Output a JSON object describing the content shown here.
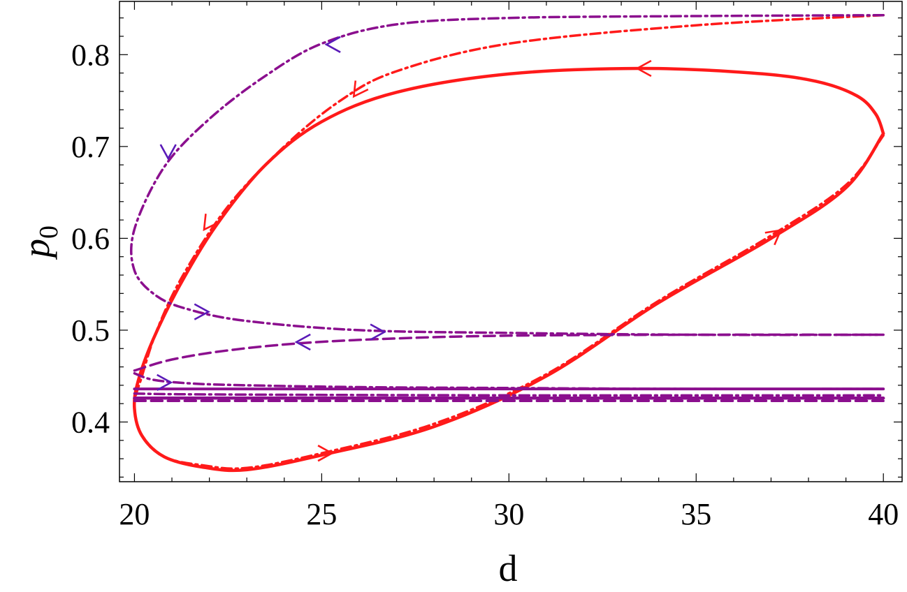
{
  "chart_data": {
    "type": "line",
    "xlabel": "d",
    "ylabel": {
      "main": "p",
      "sub": "0"
    },
    "xlim": [
      19.6,
      40.5
    ],
    "ylim": [
      0.335,
      0.858
    ],
    "x_ticks": [
      20,
      25,
      30,
      35,
      40
    ],
    "x_tick_labels": [
      "20",
      "25",
      "30",
      "35",
      "40"
    ],
    "y_ticks": [
      0.4,
      0.5,
      0.6,
      0.7,
      0.8
    ],
    "y_tick_labels": [
      "0.4",
      "0.5",
      "0.6",
      "0.7",
      "0.8"
    ],
    "x_minor_step": 1,
    "y_minor_step": 0.02,
    "grid": false,
    "legend": "none",
    "colors": {
      "red": "#ff1a1a",
      "purple": "#8b0f8e",
      "arrow_purple": "#5a1ab8"
    },
    "series": [
      {
        "style": "solid",
        "color": "#ff1a1a",
        "width": 4.5,
        "points": [
          [
            40.0,
            0.714
          ],
          [
            39.8,
            0.735
          ],
          [
            39.3,
            0.755
          ],
          [
            38.2,
            0.771
          ],
          [
            36.5,
            0.78
          ],
          [
            33.5,
            0.785
          ],
          [
            30.0,
            0.779
          ],
          [
            27.0,
            0.759
          ],
          [
            25.0,
            0.727
          ],
          [
            23.5,
            0.68
          ],
          [
            22.2,
            0.615
          ],
          [
            21.2,
            0.548
          ],
          [
            20.5,
            0.49
          ],
          [
            20.1,
            0.445
          ],
          [
            20.0,
            0.415
          ],
          [
            20.2,
            0.385
          ],
          [
            20.8,
            0.362
          ],
          [
            21.8,
            0.351
          ],
          [
            23.0,
            0.348
          ],
          [
            25.0,
            0.364
          ],
          [
            28.0,
            0.395
          ],
          [
            31.0,
            0.45
          ],
          [
            34.0,
            0.53
          ],
          [
            37.0,
            0.6
          ],
          [
            39.0,
            0.655
          ],
          [
            40.0,
            0.714
          ]
        ]
      },
      {
        "style": "dashdot",
        "color": "#ff1a1a",
        "width": 3.5,
        "points": [
          [
            40.0,
            0.843
          ],
          [
            35.0,
            0.832
          ],
          [
            30.0,
            0.812
          ],
          [
            27.0,
            0.782
          ],
          [
            25.5,
            0.75
          ],
          [
            24.0,
            0.7
          ],
          [
            22.5,
            0.635
          ],
          [
            21.3,
            0.56
          ],
          [
            20.6,
            0.5
          ],
          [
            20.2,
            0.45
          ],
          [
            20.0,
            0.418
          ],
          [
            20.2,
            0.385
          ],
          [
            20.8,
            0.362
          ],
          [
            21.8,
            0.353
          ],
          [
            23.0,
            0.35
          ],
          [
            25.0,
            0.366
          ],
          [
            28.0,
            0.398
          ],
          [
            31.0,
            0.452
          ],
          [
            34.0,
            0.532
          ],
          [
            37.0,
            0.603
          ],
          [
            39.0,
            0.658
          ],
          [
            40.0,
            0.712
          ]
        ]
      },
      {
        "style": "dashdot",
        "color": "#8b0f8e",
        "width": 3.5,
        "points": [
          [
            40.0,
            0.843
          ],
          [
            35.0,
            0.842
          ],
          [
            30.0,
            0.84
          ],
          [
            27.0,
            0.833
          ],
          [
            25.0,
            0.812
          ],
          [
            23.5,
            0.777
          ],
          [
            22.0,
            0.73
          ],
          [
            20.8,
            0.678
          ],
          [
            20.0,
            0.61
          ],
          [
            20.0,
            0.565
          ],
          [
            20.6,
            0.537
          ],
          [
            21.5,
            0.522
          ],
          [
            23.0,
            0.51
          ],
          [
            26.0,
            0.5
          ],
          [
            30.0,
            0.497
          ],
          [
            35.0,
            0.495
          ],
          [
            40.0,
            0.495
          ]
        ]
      },
      {
        "style": "dashed",
        "color": "#8b0f8e",
        "width": 3.5,
        "points": [
          [
            20.0,
            0.456
          ],
          [
            21.0,
            0.468
          ],
          [
            22.5,
            0.478
          ],
          [
            24.5,
            0.486
          ],
          [
            27.0,
            0.491
          ],
          [
            30.0,
            0.494
          ],
          [
            35.0,
            0.495
          ],
          [
            40.0,
            0.495
          ]
        ]
      },
      {
        "style": "dashdot",
        "color": "#8b0f8e",
        "width": 3.5,
        "points": [
          [
            20.0,
            0.453
          ],
          [
            20.5,
            0.446
          ],
          [
            21.5,
            0.442
          ],
          [
            23.0,
            0.44
          ],
          [
            26.0,
            0.438
          ],
          [
            30.0,
            0.437
          ],
          [
            35.0,
            0.436
          ],
          [
            40.0,
            0.436
          ]
        ]
      },
      {
        "style": "solid",
        "color": "#8b0f8e",
        "width": 4,
        "points": [
          [
            20.0,
            0.436
          ],
          [
            30.0,
            0.436
          ],
          [
            40.0,
            0.436
          ]
        ]
      },
      {
        "style": "dashdot",
        "color": "#8b0f8e",
        "width": 3.5,
        "points": [
          [
            20.0,
            0.431
          ],
          [
            22.0,
            0.43
          ],
          [
            30.0,
            0.429
          ],
          [
            40.0,
            0.429
          ]
        ]
      },
      {
        "style": "solid",
        "color": "#8b0f8e",
        "width": 4.5,
        "points": [
          [
            20.0,
            0.426
          ],
          [
            30.0,
            0.426
          ],
          [
            40.0,
            0.426
          ]
        ]
      },
      {
        "style": "dashed",
        "color": "#8b0f8e",
        "width": 3.5,
        "points": [
          [
            20.0,
            0.423
          ],
          [
            30.0,
            0.423
          ],
          [
            40.0,
            0.423
          ]
        ]
      }
    ],
    "arrows": [
      {
        "x": 33.5,
        "y": 0.785,
        "dir": "left",
        "color": "#ff1a1a"
      },
      {
        "x": 37.2,
        "y": 0.607,
        "dir": "upright",
        "color": "#ff1a1a"
      },
      {
        "x": 25.2,
        "y": 0.366,
        "dir": "right",
        "color": "#ff1a1a"
      },
      {
        "x": 21.9,
        "y": 0.612,
        "dir": "downleft",
        "color": "#ff1a1a"
      },
      {
        "x": 25.9,
        "y": 0.757,
        "dir": "downleft",
        "color": "#ff1a1a"
      },
      {
        "x": 25.2,
        "y": 0.811,
        "dir": "left",
        "color": "#5a1ab8"
      },
      {
        "x": 20.9,
        "y": 0.69,
        "dir": "down",
        "color": "#5a1ab8"
      },
      {
        "x": 21.9,
        "y": 0.52,
        "dir": "right",
        "color": "#5a1ab8"
      },
      {
        "x": 26.6,
        "y": 0.498,
        "dir": "right",
        "color": "#5a1ab8"
      },
      {
        "x": 24.4,
        "y": 0.487,
        "dir": "left",
        "color": "#5a1ab8"
      },
      {
        "x": 20.9,
        "y": 0.443,
        "dir": "right",
        "color": "#5a1ab8"
      }
    ]
  }
}
